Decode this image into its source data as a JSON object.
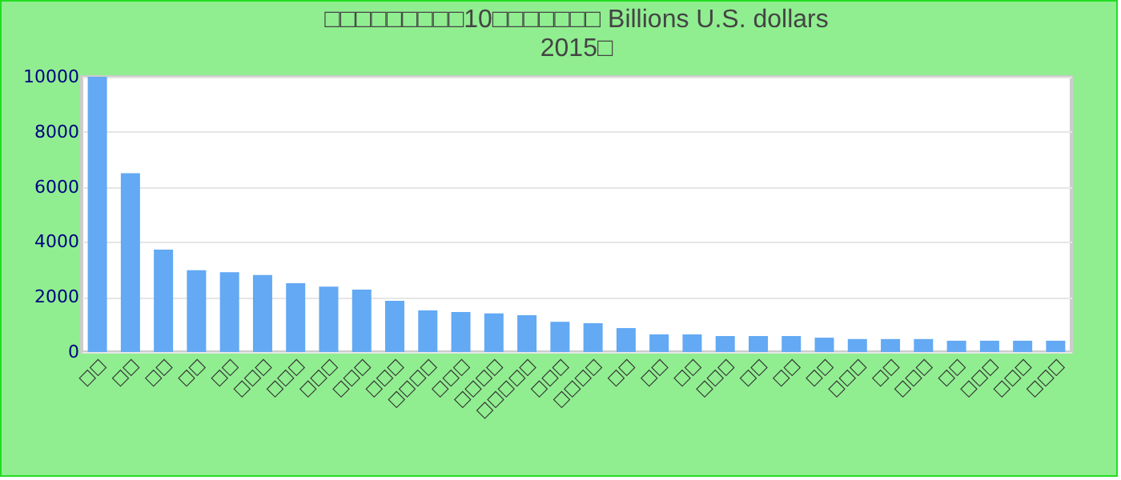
{
  "chart_data": {
    "type": "bar",
    "title": [
      "□□□□□□□□□10□□□□□□□ Billions U.S. dollars",
      "2015□"
    ],
    "categories": [
      "□□",
      "□□",
      "□□",
      "□□",
      "□□",
      "□□□",
      "□□□",
      "□□□",
      "□□□",
      "□□□",
      "□□□□",
      "□□□",
      "□□□□",
      "□□□□□",
      "□□□",
      "□□□□",
      "□□",
      "□□",
      "□□",
      "□□□",
      "□□",
      "□□",
      "□□",
      "□□□",
      "□□",
      "□□□",
      "□□",
      "□□□",
      "□□□",
      "□□□"
    ],
    "values": [
      10000,
      6500,
      3720,
      2970,
      2900,
      2800,
      2500,
      2380,
      2270,
      1860,
      1510,
      1450,
      1400,
      1340,
      1100,
      1050,
      870,
      640,
      640,
      580,
      580,
      580,
      520,
      470,
      470,
      470,
      410,
      410,
      410,
      410
    ],
    "color": "#63a9f4",
    "ylim": [
      0,
      10000
    ],
    "yticks": [
      0,
      2000,
      4000,
      6000,
      8000,
      10000
    ],
    "grid": "y"
  }
}
